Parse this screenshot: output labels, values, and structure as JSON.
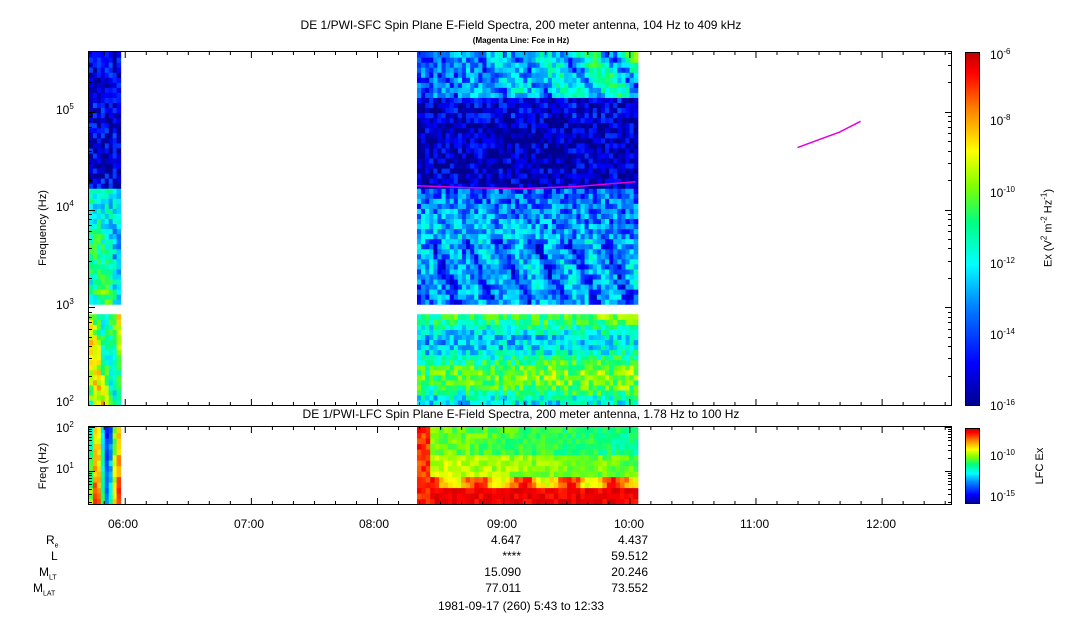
{
  "header": {
    "title": "DE 1/PWI-SFC  Spin Plane E-Field Spectra, 200 meter antenna, 104 Hz to 409 kHz",
    "subtitle": "(Magenta Line: Fce in Hz)",
    "lfc_title": "DE 1/PWI-LFC  Spin Plane E-Field Spectra, 200 meter antenna, 1.78 Hz to 100 Hz",
    "footer": "1981-09-17 (260) 5:43 to 12:33"
  },
  "colors": {
    "fce_line": "#e000e0",
    "colormap": [
      "#00008c",
      "#0000ff",
      "#0080ff",
      "#00ffff",
      "#00ff80",
      "#80ff00",
      "#ffff00",
      "#ff8000",
      "#ff0000",
      "#c00000"
    ]
  },
  "chart_data": [
    {
      "type": "heatmap",
      "name": "SFC",
      "ylabel": "Frequency (Hz)",
      "yscale": "log",
      "ylim": [
        100,
        409000
      ],
      "xlim": [
        "05:43",
        "12:33"
      ],
      "x_ticks": [
        "06:00",
        "07:00",
        "08:00",
        "09:00",
        "10:00",
        "11:00",
        "12:00"
      ],
      "y_ticks": [
        "10^2",
        "10^3",
        "10^4",
        "10^5"
      ],
      "data_intervals": [
        [
          "05:43",
          "05:58"
        ],
        [
          "08:19",
          "10:04"
        ]
      ],
      "colorbar": {
        "label": "Ex (V^2 m^-2 Hz^-1)",
        "scale": "log",
        "range": [
          1e-16,
          1e-06
        ],
        "ticks": [
          "10^-6",
          "10^-8",
          "10^-10",
          "10^-12",
          "10^-14",
          "10^-16"
        ]
      },
      "fce_line": {
        "segments": [
          {
            "x": [
              "08:19",
              "08:45",
              "09:10",
              "09:35",
              "10:03"
            ],
            "y": [
              17500,
              16700,
              16400,
              17200,
              19200
            ]
          },
          {
            "x": [
              "11:20",
              "11:40",
              "11:50"
            ],
            "y": [
              43000,
              62000,
              80000
            ]
          }
        ]
      }
    },
    {
      "type": "heatmap",
      "name": "LFC",
      "ylabel": "Freq (Hz)",
      "yscale": "log",
      "ylim": [
        1.78,
        100
      ],
      "xlim": [
        "05:43",
        "12:33"
      ],
      "y_ticks": [
        "10^1",
        "10^2"
      ],
      "data_intervals": [
        [
          "05:43",
          "05:58"
        ],
        [
          "08:19",
          "10:04"
        ]
      ],
      "colorbar": {
        "label": "LFC Ex",
        "scale": "log",
        "ticks": [
          "10^-10",
          "10^-15"
        ]
      }
    }
  ],
  "ephemeris": {
    "labels": [
      {
        "main": "R",
        "sub": "e"
      },
      {
        "main": "L",
        "sub": ""
      },
      {
        "main": "M",
        "sub": "LT"
      },
      {
        "main": "M",
        "sub": "LAT"
      }
    ],
    "columns": [
      {
        "time": "09:00",
        "values": [
          "4.647",
          "****",
          "15.090",
          "77.011"
        ]
      },
      {
        "time": "10:00",
        "values": [
          "4.437",
          "59.512",
          "20.246",
          "73.552"
        ]
      }
    ]
  }
}
